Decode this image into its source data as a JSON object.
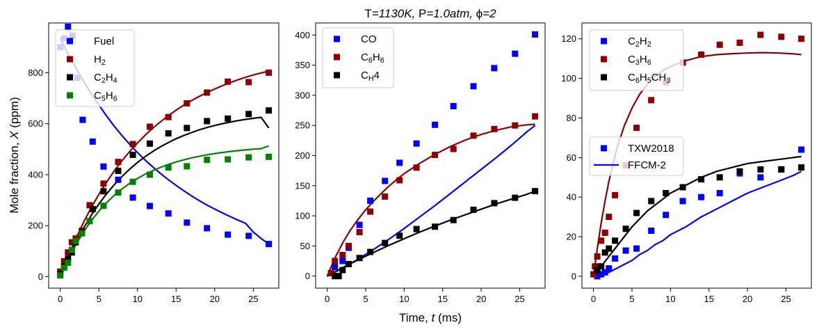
{
  "figure": {
    "title_parts": [
      "T",
      "=1130K, ",
      "P",
      "=1.0atm, ",
      "ϕ",
      "=2"
    ],
    "xlabel_parts": [
      "Time, ",
      "t",
      " (ms)"
    ],
    "ylabel_parts": [
      "Mole fraction, ",
      "X",
      " (ppm)"
    ]
  },
  "legend_style": {
    "marker_entry": {
      "label": "TXW2018",
      "color": "#0000ff"
    },
    "line_entry": {
      "label": "FFCM-2",
      "color": "#0000ff"
    }
  },
  "chart_data": [
    {
      "type": "scatter",
      "panel": "left",
      "xlim": [
        -1.5,
        28.3
      ],
      "ylim": [
        -45,
        995
      ],
      "xticks": [
        "0",
        "5",
        "10",
        "15",
        "20",
        "25"
      ],
      "yticks": [
        "0",
        "200",
        "400",
        "600",
        "800"
      ],
      "legend_position": "upper-left",
      "series": [
        {
          "name": "Fuel",
          "label_parts": [
            "Fuel"
          ],
          "color": "#0000ff",
          "markers": {
            "x": [
              0,
              0.5,
              1,
              1.6,
              2.2,
              2.9,
              4.2,
              5.6,
              7.5,
              9.4,
              11.6,
              14,
              16.4,
              19,
              21.7,
              24.4,
              27
            ],
            "y": [
              900,
              935,
              980,
              945,
              780,
              615,
              530,
              432,
              380,
              310,
              277,
              248,
              212,
              190,
              165,
              160,
              128
            ]
          },
          "curve": {
            "x": [
              0,
              1,
              2,
              3,
              4,
              5,
              6,
              7,
              8,
              9,
              10,
              11,
              12,
              13,
              14,
              15,
              16,
              17,
              18,
              19,
              20,
              21,
              22,
              23,
              24,
              25,
              26,
              27
            ],
            "y": [
              935,
              875,
              820,
              767,
              718,
              674,
              630,
              590,
              553,
              519,
              487,
              457,
              430,
              404,
              380,
              358,
              337,
              317,
              298,
              281,
              265,
              250,
              236,
              222,
              209,
              175,
              150,
              128
            ]
          }
        },
        {
          "name": "H2",
          "label_parts": [
            "H",
            "2"
          ],
          "color": "#8b0000",
          "markers": {
            "x": [
              0,
              0.5,
              1,
              1.5,
              2,
              2.8,
              3.8,
              5.6,
              7.5,
              9.4,
              11.6,
              14,
              16.4,
              19,
              21.7,
              24.4,
              27
            ],
            "y": [
              20,
              60,
              95,
              135,
              150,
              180,
              280,
              365,
              450,
              520,
              588,
              626,
              680,
              722,
              765,
              763,
              800
            ]
          },
          "curve": {
            "x": [
              0,
              1,
              2,
              3,
              4,
              5,
              6,
              7,
              8,
              9,
              10,
              11,
              12,
              13,
              14,
              15,
              16,
              17,
              18,
              19,
              20,
              21,
              22,
              23,
              24,
              25,
              26,
              27
            ],
            "y": [
              0,
              77,
              148,
              212,
              270,
              323,
              371,
              415,
              455,
              491,
              524,
              555,
              583,
              608,
              632,
              653,
              673,
              691,
              707,
              722,
              736,
              749,
              761,
              772,
              782,
              791,
              799,
              806
            ]
          }
        },
        {
          "name": "C2H4",
          "label_parts": [
            "C",
            "2",
            "H",
            "4"
          ],
          "color": "#000000",
          "markers": {
            "x": [
              0,
              0.5,
              1,
              1.5,
              2,
              2.8,
              4.2,
              5.6,
              7.5,
              9.4,
              11.6,
              14,
              16.4,
              19,
              21.7,
              24.4,
              27
            ],
            "y": [
              10,
              40,
              70,
              95,
              135,
              175,
              265,
              335,
              415,
              478,
              522,
              562,
              583,
              610,
              620,
              638,
              652
            ]
          },
          "curve": {
            "x": [
              0,
              1,
              2,
              3,
              4,
              5,
              6,
              7,
              8,
              9,
              10,
              11,
              12,
              13,
              14,
              15,
              16,
              17,
              18,
              19,
              20,
              21,
              22,
              23,
              24,
              25,
              26,
              27
            ],
            "y": [
              0,
              70,
              133,
              190,
              240,
              285,
              325,
              361,
              393,
              422,
              448,
              471,
              491,
              510,
              526,
              541,
              554,
              565,
              576,
              585,
              593,
              600,
              606,
              612,
              617,
              621,
              625,
              583
            ]
          }
        },
        {
          "name": "C5H6",
          "label_parts": [
            "C",
            "5",
            "H",
            "6"
          ],
          "color": "#008000",
          "markers": {
            "x": [
              0,
              0.5,
              1,
              1.5,
              2,
              2.8,
              3.8,
              5.6,
              7.5,
              9.4,
              11.6,
              14,
              16.4,
              19,
              21.7,
              24.4,
              27
            ],
            "y": [
              5,
              35,
              55,
              105,
              140,
              170,
              218,
              278,
              330,
              372,
              400,
              428,
              433,
              458,
              460,
              468,
              470
            ]
          },
          "curve": {
            "x": [
              0,
              1,
              2,
              3,
              4,
              5,
              6,
              7,
              8,
              9,
              10,
              11,
              12,
              13,
              14,
              15,
              16,
              17,
              18,
              19,
              20,
              21,
              22,
              23,
              24,
              25,
              26,
              27
            ],
            "y": [
              0,
              66,
              124,
              175,
              219,
              257,
              290,
              319,
              344,
              366,
              385,
              402,
              416,
              429,
              440,
              450,
              458,
              466,
              472,
              478,
              483,
              487,
              491,
              494,
              497,
              500,
              502,
              513
            ]
          }
        }
      ]
    },
    {
      "type": "scatter",
      "panel": "middle",
      "xlim": [
        -1.5,
        28.3
      ],
      "ylim": [
        -20,
        420
      ],
      "xticks": [
        "0",
        "5",
        "10",
        "15",
        "20",
        "25"
      ],
      "yticks": [
        "0",
        "50",
        "100",
        "150",
        "200",
        "250",
        "300",
        "350",
        "400"
      ],
      "legend_position": "upper-left",
      "series": [
        {
          "name": "CO",
          "label_parts": [
            "CO"
          ],
          "color": "#0000ff",
          "markers": {
            "x": [
              1,
              2,
              2.8,
              4.2,
              5.6,
              7.5,
              9.4,
              11.6,
              14,
              16.4,
              19,
              21.7,
              24.4,
              27
            ],
            "y": [
              15,
              25,
              47,
              85,
              125,
              158,
              188,
              220,
              251,
              282,
              315,
              345,
              369,
              401
            ]
          },
          "curve": {
            "x": [
              0,
              2,
              4,
              6,
              8,
              10,
              12,
              14,
              16,
              18,
              20,
              22,
              24,
              26,
              27
            ],
            "y": [
              0,
              13,
              28,
              44,
              61,
              79,
              98,
              117,
              137,
              157,
              177,
              197,
              218,
              240,
              250
            ]
          }
        },
        {
          "name": "C6H6",
          "label_parts": [
            "C",
            "6",
            "H",
            "6"
          ],
          "color": "#8b0000",
          "markers": {
            "x": [
              0.5,
              1,
              2,
              2.8,
              4.2,
              5.6,
              7.5,
              9.4,
              11.6,
              14,
              16.4,
              19,
              21.7,
              24.4,
              27
            ],
            "y": [
              5,
              25,
              35,
              50,
              73,
              107,
              132,
              159,
              180,
              201,
              211,
              233,
              244,
              250,
              265
            ]
          },
          "curve": {
            "x": [
              0,
              1,
              2,
              3,
              4,
              5,
              6,
              7,
              8,
              9,
              10,
              12,
              14,
              16,
              18,
              20,
              22,
              24,
              26,
              27
            ],
            "y": [
              0,
              30,
              55,
              76,
              94,
              110,
              124,
              137,
              149,
              160,
              170,
              187,
              202,
              215,
              226,
              235,
              242,
              248,
              251,
              252
            ]
          }
        },
        {
          "name": "CH4",
          "label_parts": [
            "C",
            "H",
            "4"
          ],
          "color": "#000000",
          "markers": {
            "x": [
              1,
              1.5,
              2,
              2.8,
              4.2,
              5.6,
              7.5,
              9.4,
              11.6,
              14,
              16.4,
              19,
              21.7,
              24.4,
              27
            ],
            "y": [
              0,
              0,
              10,
              20,
              30,
              40,
              55,
              67,
              78,
              82,
              93,
              110,
              121,
              130,
              141
            ]
          },
          "curve": {
            "x": [
              0,
              2,
              4,
              6,
              8,
              10,
              12,
              14,
              16,
              18,
              20,
              22,
              24,
              26,
              27
            ],
            "y": [
              0,
              14,
              27,
              39,
              51,
              62,
              73,
              83,
              93,
              102,
              111,
              120,
              128,
              136,
              141
            ]
          }
        }
      ]
    },
    {
      "type": "scatter",
      "panel": "right",
      "xlim": [
        -1.5,
        28.3
      ],
      "ylim": [
        -6,
        128
      ],
      "xticks": [
        "0",
        "5",
        "10",
        "15",
        "20",
        "25"
      ],
      "yticks": [
        "0",
        "20",
        "40",
        "60",
        "80",
        "100",
        "120"
      ],
      "legend_position": "upper-left",
      "series": [
        {
          "name": "C2H2",
          "label_parts": [
            "C",
            "2",
            "H",
            "2"
          ],
          "color": "#0000ff",
          "markers": {
            "x": [
              0.5,
              1,
              1.5,
              2,
              2.8,
              4.2,
              5.6,
              7.5,
              9.4,
              11.6,
              14,
              16.4,
              19,
              21.7,
              24.4,
              27
            ],
            "y": [
              0,
              1,
              2,
              4,
              9,
              13,
              14,
              23,
              31,
              38,
              40,
              42,
              52,
              50,
              54,
              64
            ]
          },
          "curve": {
            "x": [
              0,
              1,
              2,
              3,
              4,
              5,
              6,
              7,
              8,
              9,
              10,
              12,
              14,
              16,
              18,
              20,
              22,
              24,
              26,
              27
            ],
            "y": [
              0,
              1,
              2,
              4,
              6,
              8,
              11,
              13,
              16,
              18,
              21,
              25,
              30,
              34,
              38,
              42,
              45,
              48,
              51,
              53
            ]
          }
        },
        {
          "name": "C3H6",
          "label_parts": [
            "C",
            "3",
            "H",
            "6"
          ],
          "color": "#8b0000",
          "markers": {
            "x": [
              0,
              0.2,
              0.5,
              1,
              1.5,
              2,
              2.8,
              4.2,
              5.6,
              7.5,
              9.4,
              11.6,
              14,
              16.4,
              19,
              21.7,
              24.4,
              27
            ],
            "y": [
              1,
              5,
              10,
              18,
              22,
              30,
              41,
              56,
              75,
              89,
              98,
              108,
              112,
              117,
              118,
              122,
              121,
              120
            ]
          },
          "curve": {
            "x": [
              0,
              0.5,
              1,
              1.5,
              2,
              3,
              4,
              5,
              6,
              7,
              8,
              9,
              10,
              12,
              14,
              16,
              18,
              20,
              22,
              24,
              26,
              27
            ],
            "y": [
              0,
              14,
              27,
              38,
              48,
              64,
              76,
              85,
              92,
              97,
              101,
              104,
              106,
              109,
              111,
              112,
              112.5,
              112.8,
              113,
              112.8,
              112.4,
              112
            ]
          }
        },
        {
          "name": "C6H5CH3",
          "label_parts": [
            "C",
            "6",
            "H",
            "5",
            "CH",
            "3"
          ],
          "color": "#000000",
          "markers": {
            "x": [
              0.5,
              1,
              1.5,
              2,
              2.8,
              4.2,
              5.6,
              7.5,
              9.4,
              11.6,
              14,
              16.4,
              19,
              21.7,
              24.4,
              27
            ],
            "y": [
              3,
              5,
              12,
              14,
              18,
              24,
              32,
              38,
              42,
              45,
              49,
              50,
              53,
              54,
              54,
              55
            ]
          },
          "curve": {
            "x": [
              0,
              1,
              2,
              3,
              4,
              5,
              6,
              7,
              8,
              9,
              10,
              12,
              14,
              16,
              18,
              20,
              22,
              24,
              26,
              27
            ],
            "y": [
              0,
              5,
              10,
              15,
              20,
              25,
              29,
              33,
              36,
              39,
              42,
              46,
              50,
              53,
              55,
              57,
              58,
              59,
              60,
              60.5
            ]
          }
        }
      ]
    }
  ]
}
